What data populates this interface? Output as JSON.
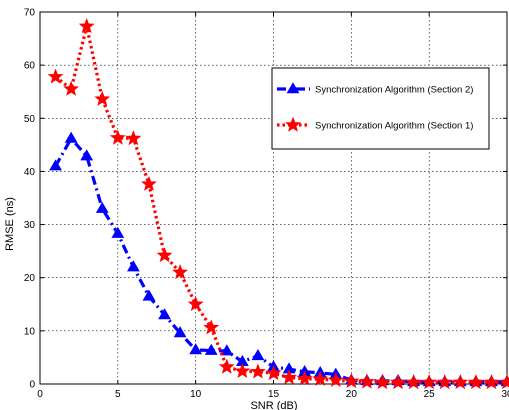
{
  "chart_data": {
    "type": "line",
    "title": "",
    "xlabel": "SNR (dB)",
    "ylabel": "RMSE (ns)",
    "xlim": [
      0,
      30
    ],
    "ylim": [
      0,
      70
    ],
    "xticks": [
      0,
      5,
      10,
      15,
      20,
      25,
      30
    ],
    "yticks": [
      0,
      10,
      20,
      30,
      40,
      50,
      60,
      70
    ],
    "grid": true,
    "legend_position": "top-right",
    "series": [
      {
        "name": "Synchronization Algorithm (Section 2)",
        "color": "#0000ff",
        "marker": "triangle",
        "line_style": "dash-dot",
        "x": [
          1,
          2,
          3,
          4,
          5,
          6,
          7,
          8,
          9,
          10,
          11,
          12,
          13,
          14,
          15,
          16,
          17,
          18,
          19,
          20,
          21,
          22,
          23,
          24,
          25,
          26,
          27,
          28,
          29,
          30
        ],
        "y": [
          41.0,
          46.2,
          42.9,
          33.0,
          28.3,
          22.0,
          16.5,
          13.0,
          9.6,
          6.4,
          6.3,
          6.2,
          4.2,
          5.3,
          3.2,
          2.8,
          2.3,
          2.1,
          1.8,
          0.7,
          0.6,
          0.6,
          0.6,
          0.4,
          0.4,
          0.4,
          0.4,
          0.4,
          0.4,
          0.4
        ]
      },
      {
        "name": "Synchronization Algorithm (Section 1)",
        "color": "#ff0000",
        "marker": "star",
        "line_style": "dotted",
        "x": [
          1,
          2,
          3,
          4,
          5,
          6,
          7,
          8,
          9,
          10,
          11,
          12,
          13,
          14,
          15,
          16,
          17,
          18,
          19,
          20,
          21,
          22,
          23,
          24,
          25,
          26,
          27,
          28,
          29,
          30
        ],
        "y": [
          57.8,
          55.5,
          67.3,
          53.6,
          46.3,
          46.2,
          37.6,
          24.2,
          21.0,
          15.0,
          10.6,
          3.2,
          2.4,
          2.3,
          2.0,
          1.2,
          1.0,
          0.9,
          0.7,
          0.5,
          0.4,
          0.3,
          0.3,
          0.3,
          0.3,
          0.3,
          0.3,
          0.3,
          0.3,
          0.3
        ]
      }
    ]
  }
}
